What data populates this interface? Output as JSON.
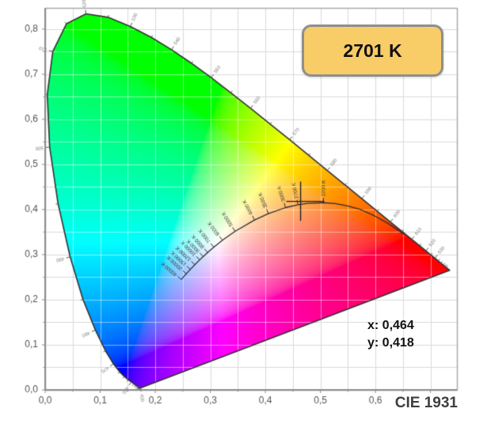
{
  "app": {
    "footer_label": "CIE 1931"
  },
  "badge": {
    "label": "2701 K"
  },
  "readout": {
    "x": "x: 0,464",
    "y": "y: 0,418"
  },
  "colors": {
    "badge_bg": "#F8CC66",
    "badge_border": "#8F8F8F",
    "badge_text": "#111111",
    "readout_text": "#111111",
    "footer_text": "#3F3F3F",
    "grid": "#DADADA",
    "grid_inner": "rgba(255,255,255,0.5)",
    "plot_border": "#ABABAB",
    "axis": "#8C8C8C",
    "axis_text": "#555555",
    "locus_outline": "#333333",
    "locus_tick_text": "#808080",
    "planckian": "#2D2D2D",
    "temp_text": "#3A3A3A",
    "marker": "#222222"
  },
  "chart_data": {
    "type": "heatmap",
    "subtype": "CIE 1931 xy chromaticity diagram",
    "title": "CIE 1931",
    "xlabel": "",
    "ylabel": "",
    "xlim": [
      0,
      0.748
    ],
    "ylim": [
      0,
      0.847
    ],
    "grid_step": 0.05,
    "x_ticks": {
      "values": [
        0,
        0.1,
        0.2,
        0.3,
        0.4,
        0.5,
        0.6
      ],
      "labels": [
        "0,0",
        "0,1",
        "0,2",
        "0,3",
        "0,4",
        "0,5",
        "0,6"
      ]
    },
    "y_ticks": {
      "values": [
        0,
        0.1,
        0.2,
        0.3,
        0.4,
        0.5,
        0.6,
        0.7,
        0.8
      ],
      "labels": [
        "0,0",
        "0,1",
        "0,2",
        "0,3",
        "0,4",
        "0,5",
        "0,6",
        "0,7",
        "0,8"
      ]
    },
    "marker": {
      "x": 0.464,
      "y": 0.418,
      "cct_label": "2701 K",
      "x_display": "0,464",
      "y_display": "0,418"
    },
    "wavelength_labels": [
      400,
      450,
      470,
      480,
      490,
      500,
      510,
      520,
      530,
      540,
      550,
      560,
      570,
      580,
      590,
      600,
      610,
      620,
      630
    ],
    "spectral_locus": [
      [
        380,
        0.1741,
        0.005
      ],
      [
        385,
        0.174,
        0.005
      ],
      [
        390,
        0.1738,
        0.0049
      ],
      [
        395,
        0.1736,
        0.0049
      ],
      [
        400,
        0.1733,
        0.0048
      ],
      [
        405,
        0.173,
        0.0048
      ],
      [
        410,
        0.1726,
        0.0048
      ],
      [
        415,
        0.1721,
        0.0048
      ],
      [
        420,
        0.1714,
        0.0051
      ],
      [
        425,
        0.1703,
        0.0058
      ],
      [
        430,
        0.1689,
        0.0069
      ],
      [
        435,
        0.1669,
        0.0086
      ],
      [
        440,
        0.1644,
        0.0109
      ],
      [
        445,
        0.1611,
        0.0138
      ],
      [
        450,
        0.1566,
        0.0177
      ],
      [
        455,
        0.151,
        0.0227
      ],
      [
        460,
        0.144,
        0.0297
      ],
      [
        465,
        0.1355,
        0.0399
      ],
      [
        470,
        0.1241,
        0.0578
      ],
      [
        475,
        0.1096,
        0.0868
      ],
      [
        480,
        0.0913,
        0.1327
      ],
      [
        485,
        0.0687,
        0.2007
      ],
      [
        490,
        0.0454,
        0.295
      ],
      [
        495,
        0.0235,
        0.4127
      ],
      [
        500,
        0.0082,
        0.5384
      ],
      [
        505,
        0.0039,
        0.6548
      ],
      [
        510,
        0.0139,
        0.7502
      ],
      [
        515,
        0.0389,
        0.812
      ],
      [
        520,
        0.0743,
        0.8338
      ],
      [
        525,
        0.1142,
        0.8262
      ],
      [
        530,
        0.1547,
        0.8059
      ],
      [
        535,
        0.1929,
        0.7816
      ],
      [
        540,
        0.2296,
        0.7543
      ],
      [
        545,
        0.2658,
        0.7243
      ],
      [
        550,
        0.3016,
        0.6923
      ],
      [
        555,
        0.3373,
        0.6589
      ],
      [
        560,
        0.3731,
        0.6245
      ],
      [
        565,
        0.4087,
        0.5896
      ],
      [
        570,
        0.4441,
        0.5547
      ],
      [
        575,
        0.4788,
        0.5202
      ],
      [
        580,
        0.5125,
        0.4866
      ],
      [
        585,
        0.5448,
        0.4544
      ],
      [
        590,
        0.5752,
        0.4242
      ],
      [
        595,
        0.6029,
        0.3965
      ],
      [
        600,
        0.627,
        0.3725
      ],
      [
        605,
        0.6482,
        0.3514
      ],
      [
        610,
        0.6658,
        0.334
      ],
      [
        615,
        0.6801,
        0.3197
      ],
      [
        620,
        0.6915,
        0.3083
      ],
      [
        625,
        0.7006,
        0.2993
      ],
      [
        630,
        0.7079,
        0.292
      ],
      [
        635,
        0.714,
        0.2859
      ],
      [
        640,
        0.719,
        0.2809
      ],
      [
        645,
        0.723,
        0.277
      ],
      [
        650,
        0.726,
        0.274
      ],
      [
        655,
        0.7283,
        0.2717
      ],
      [
        660,
        0.73,
        0.27
      ],
      [
        665,
        0.7311,
        0.2689
      ],
      [
        670,
        0.732,
        0.268
      ],
      [
        675,
        0.7327,
        0.2673
      ],
      [
        680,
        0.7334,
        0.2666
      ],
      [
        685,
        0.734,
        0.266
      ],
      [
        690,
        0.7344,
        0.2656
      ],
      [
        700,
        0.7347,
        0.2653
      ]
    ],
    "planckian_locus": [
      [
        1000,
        0.6528,
        0.3444
      ],
      [
        1200,
        0.6249,
        0.3676
      ],
      [
        1400,
        0.5984,
        0.3859
      ],
      [
        1600,
        0.574,
        0.3994
      ],
      [
        1800,
        0.5496,
        0.4081
      ],
      [
        2000,
        0.5269,
        0.4132
      ],
      [
        2200,
        0.5055,
        0.4152
      ],
      [
        2500,
        0.4766,
        0.4137
      ],
      [
        2700,
        0.4593,
        0.4106
      ],
      [
        3000,
        0.4366,
        0.4042
      ],
      [
        3500,
        0.4054,
        0.3909
      ],
      [
        4000,
        0.3805,
        0.3768
      ],
      [
        5000,
        0.345,
        0.3516
      ],
      [
        6000,
        0.322,
        0.3318
      ],
      [
        7000,
        0.3064,
        0.3166
      ],
      [
        8000,
        0.2952,
        0.3048
      ],
      [
        9000,
        0.287,
        0.2956
      ],
      [
        10000,
        0.2807,
        0.2883
      ],
      [
        12000,
        0.2718,
        0.2776
      ],
      [
        15000,
        0.2637,
        0.2672
      ],
      [
        20000,
        0.2564,
        0.2576
      ],
      [
        25000,
        0.2525,
        0.2523
      ],
      [
        40000,
        0.2472,
        0.2449
      ]
    ],
    "temperature_labels": [
      {
        "T": 2200,
        "label": "2200 K"
      },
      {
        "T": 2700,
        "label": "2700 K"
      },
      {
        "T": 3000,
        "label": "3000 K"
      },
      {
        "T": 3500,
        "label": "3500 K"
      },
      {
        "T": 4000,
        "label": "4000 K"
      },
      {
        "T": 5000,
        "label": "5000 K"
      },
      {
        "T": 6000,
        "label": "6000 K"
      },
      {
        "T": 7000,
        "label": "7000 K"
      },
      {
        "T": 8000,
        "label": "8000 K"
      },
      {
        "T": 9000,
        "label": "9000 K"
      },
      {
        "T": 10000,
        "label": "10000 K"
      },
      {
        "T": 12000,
        "label": "12000 K"
      },
      {
        "T": 15000,
        "label": "15000 K"
      },
      {
        "T": 20000,
        "label": "20000 K"
      },
      {
        "T": 40000,
        "label": "40000 K"
      }
    ]
  }
}
